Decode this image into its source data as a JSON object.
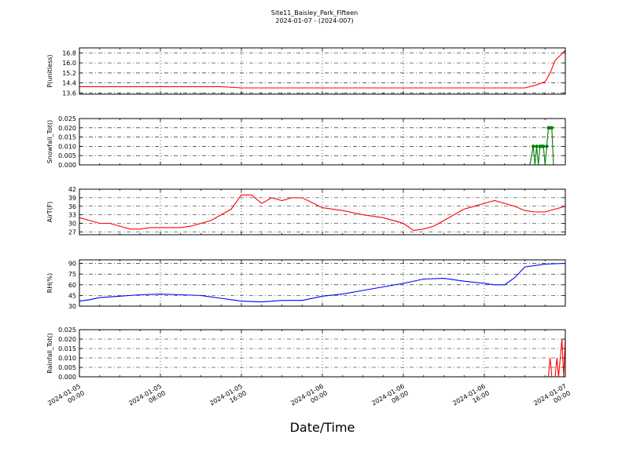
{
  "figure": {
    "title_line1": "Site11_Baisley_Park_Fifteen",
    "title_line2": "2024-01-07 - (2024-007)",
    "xlabel": "Date/Time"
  },
  "x_ticks": [
    {
      "line1": "2024-01-05",
      "line2": "00:00"
    },
    {
      "line1": "2024-01-05",
      "line2": "08:00"
    },
    {
      "line1": "2024-01-05",
      "line2": "16:00"
    },
    {
      "line1": "2024-01-06",
      "line2": "00:00"
    },
    {
      "line1": "2024-01-06",
      "line2": "08:00"
    },
    {
      "line1": "2024-01-06",
      "line2": "16:00"
    },
    {
      "line1": "2024-01-07",
      "line2": "00:00"
    }
  ],
  "chart_data": [
    {
      "type": "line",
      "ylabel": "P(unitless)",
      "color": "#ff0000",
      "ylim": [
        13.5,
        17.2
      ],
      "yticks": [
        "13.6",
        "14.4",
        "15.2",
        "16.0",
        "16.8"
      ],
      "x": [
        "2024-01-05 00:00",
        "2024-01-05 08:00",
        "2024-01-05 14:00",
        "2024-01-05 16:00",
        "2024-01-06 00:00",
        "2024-01-06 16:00",
        "2024-01-06 20:00",
        "2024-01-06 21:00",
        "2024-01-06 22:00",
        "2024-01-06 22:30",
        "2024-01-06 23:00",
        "2024-01-07 00:00"
      ],
      "y": [
        14.1,
        14.1,
        14.1,
        14.0,
        14.0,
        14.0,
        14.0,
        14.2,
        14.5,
        15.2,
        16.2,
        17.0
      ]
    },
    {
      "type": "line",
      "ylabel": "Snowfall_Tot()",
      "color": "#007f00",
      "markers": true,
      "ylim": [
        0,
        0.025
      ],
      "yticks": [
        "0.000",
        "0.005",
        "0.010",
        "0.015",
        "0.020",
        "0.025"
      ],
      "x": [
        "2024-01-05 00:00",
        "2024-01-06 20:30",
        "2024-01-06 20:50",
        "2024-01-06 21:00",
        "2024-01-06 21:10",
        "2024-01-06 21:20",
        "2024-01-06 21:30",
        "2024-01-06 21:40",
        "2024-01-06 21:50",
        "2024-01-06 22:00",
        "2024-01-06 22:10",
        "2024-01-06 22:20",
        "2024-01-06 22:30",
        "2024-01-06 22:40",
        "2024-01-06 22:50",
        "2024-01-06 23:00",
        "2024-01-07 00:00"
      ],
      "y": [
        0,
        0,
        0.01,
        0,
        0.01,
        0,
        0.01,
        0.01,
        0.01,
        0,
        0.01,
        0.02,
        0.02,
        0.02,
        0,
        0,
        0
      ]
    },
    {
      "type": "line",
      "ylabel": "AirT(F)",
      "color": "#ff0000",
      "ylim": [
        26,
        42
      ],
      "yticks": [
        "27",
        "30",
        "33",
        "36",
        "39",
        "42"
      ],
      "x": [
        "2024-01-05 00:00",
        "2024-01-05 01:00",
        "2024-01-05 02:00",
        "2024-01-05 03:00",
        "2024-01-05 04:00",
        "2024-01-05 05:00",
        "2024-01-05 06:00",
        "2024-01-05 07:00",
        "2024-01-05 08:00",
        "2024-01-05 09:00",
        "2024-01-05 10:00",
        "2024-01-05 11:00",
        "2024-01-05 12:00",
        "2024-01-05 13:00",
        "2024-01-05 14:00",
        "2024-01-05 15:00",
        "2024-01-05 16:00",
        "2024-01-05 17:00",
        "2024-01-05 18:00",
        "2024-01-05 19:00",
        "2024-01-05 20:00",
        "2024-01-05 21:00",
        "2024-01-05 22:00",
        "2024-01-06 00:00",
        "2024-01-06 02:00",
        "2024-01-06 04:00",
        "2024-01-06 06:00",
        "2024-01-06 08:00",
        "2024-01-06 09:00",
        "2024-01-06 10:00",
        "2024-01-06 11:00",
        "2024-01-06 12:00",
        "2024-01-06 13:00",
        "2024-01-06 14:00",
        "2024-01-06 15:00",
        "2024-01-06 16:00",
        "2024-01-06 17:00",
        "2024-01-06 18:00",
        "2024-01-06 19:00",
        "2024-01-06 20:00",
        "2024-01-06 21:00",
        "2024-01-06 22:00",
        "2024-01-06 23:00",
        "2024-01-07 00:00"
      ],
      "y": [
        32,
        31,
        30,
        30,
        29,
        28,
        28,
        28.5,
        28.5,
        28.5,
        28.5,
        29,
        30,
        31,
        33,
        35,
        40,
        40,
        37,
        39,
        38,
        39,
        39,
        35.5,
        34.5,
        33,
        32,
        30,
        27.5,
        28,
        29,
        31,
        33,
        35,
        36,
        37,
        38,
        37,
        36,
        34.5,
        34,
        34,
        35,
        36
      ]
    },
    {
      "type": "line",
      "ylabel": "RH(%)",
      "color": "#0000ff",
      "ylim": [
        30,
        95
      ],
      "yticks": [
        "30",
        "45",
        "60",
        "75",
        "90"
      ],
      "x": [
        "2024-01-05 00:00",
        "2024-01-05 01:00",
        "2024-01-05 02:00",
        "2024-01-05 04:00",
        "2024-01-05 06:00",
        "2024-01-05 08:00",
        "2024-01-05 10:00",
        "2024-01-05 12:00",
        "2024-01-05 14:00",
        "2024-01-05 16:00",
        "2024-01-05 18:00",
        "2024-01-05 20:00",
        "2024-01-05 22:00",
        "2024-01-06 00:00",
        "2024-01-06 02:00",
        "2024-01-06 04:00",
        "2024-01-06 06:00",
        "2024-01-06 08:00",
        "2024-01-06 10:00",
        "2024-01-06 12:00",
        "2024-01-06 14:00",
        "2024-01-06 16:00",
        "2024-01-06 17:00",
        "2024-01-06 18:00",
        "2024-01-06 19:00",
        "2024-01-06 20:00",
        "2024-01-06 22:00",
        "2024-01-07 00:00"
      ],
      "y": [
        37,
        39,
        42,
        44,
        46,
        47,
        46,
        45,
        41,
        37,
        36,
        38,
        38,
        44,
        47,
        52,
        57,
        62,
        68,
        69,
        65,
        62,
        60,
        60,
        70,
        85,
        89,
        90
      ]
    },
    {
      "type": "line",
      "ylabel": "Rainfall_Tot()",
      "color": "#ff0000",
      "ylim": [
        0,
        0.025
      ],
      "yticks": [
        "0.000",
        "0.005",
        "0.010",
        "0.015",
        "0.020",
        "0.025"
      ],
      "x": [
        "2024-01-05 00:00",
        "2024-01-06 22:20",
        "2024-01-06 22:30",
        "2024-01-06 22:40",
        "2024-01-06 22:50",
        "2024-01-06 23:00",
        "2024-01-06 23:10",
        "2024-01-06 23:20",
        "2024-01-06 23:30",
        "2024-01-06 23:40",
        "2024-01-06 23:50",
        "2024-01-07 00:00"
      ],
      "y": [
        0,
        0,
        0.01,
        0,
        0,
        0,
        0.01,
        0,
        0.01,
        0.02,
        0,
        0.02
      ]
    }
  ]
}
